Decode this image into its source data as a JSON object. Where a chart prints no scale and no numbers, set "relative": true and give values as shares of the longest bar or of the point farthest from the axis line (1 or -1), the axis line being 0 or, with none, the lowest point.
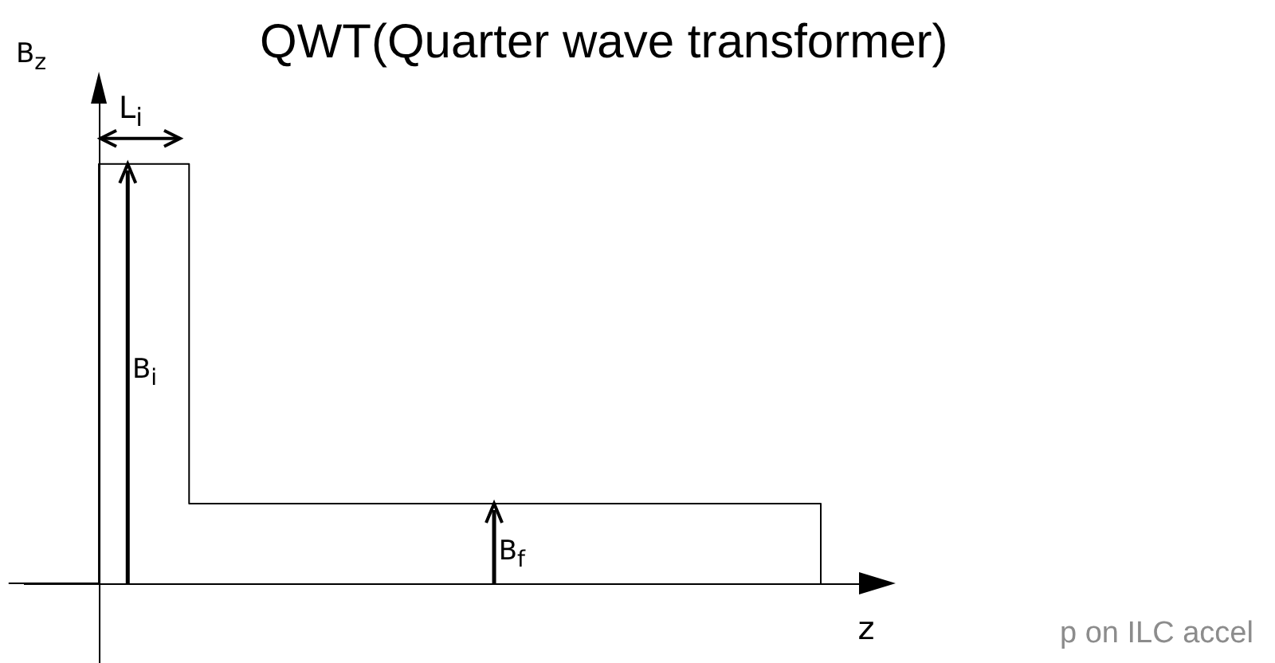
{
  "chart_data": {
    "type": "step",
    "title": "QWT(Quarter wave transformer)",
    "xlabel": "z",
    "ylabel": "B$_{z}$",
    "categories": [
      null,
      null,
      null,
      null,
      null,
      null,
      null,
      null,
      null,
      null
    ],
    "values": [
      0,
      1,
      0.19,
      0.19,
      0.19,
      0.19,
      0.19,
      0.19,
      0.19,
      0
    ],
    "color": "#000000",
    "relative": true,
    "annotations": [
      "L$_{i}$",
      "B$_{i}$",
      "B$_{f}$",
      "p on ILC accel"
    ]
  }
}
